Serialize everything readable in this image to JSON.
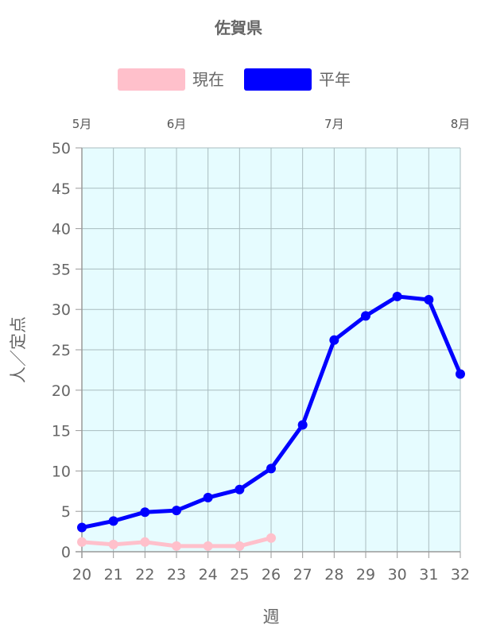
{
  "chart_data": {
    "type": "line",
    "title": "佐賀県",
    "xlabel": "週",
    "ylabel": "人／定点",
    "x": [
      20,
      21,
      22,
      23,
      24,
      25,
      26,
      27,
      28,
      29,
      30,
      31,
      32
    ],
    "xlim": [
      20,
      32
    ],
    "ylim": [
      0,
      50
    ],
    "yticks": [
      0,
      5,
      10,
      15,
      20,
      25,
      30,
      35,
      40,
      45,
      50
    ],
    "grid": true,
    "legend_position": "top",
    "plot_background": "#e6fcff",
    "month_labels": [
      {
        "label": "5月",
        "week": 20
      },
      {
        "label": "6月",
        "week": 23
      },
      {
        "label": "7月",
        "week": 28
      },
      {
        "label": "8月",
        "week": 32
      }
    ],
    "series": [
      {
        "name": "現在",
        "color": "#ffc0cb",
        "values": [
          1.2,
          0.9,
          1.2,
          0.7,
          0.7,
          0.7,
          1.7,
          null,
          null,
          null,
          null,
          null,
          null
        ]
      },
      {
        "name": "平年",
        "color": "#0000ff",
        "values": [
          3.0,
          3.8,
          4.9,
          5.1,
          6.7,
          7.7,
          10.3,
          15.7,
          26.2,
          29.2,
          31.6,
          31.2,
          22.0
        ]
      }
    ]
  }
}
